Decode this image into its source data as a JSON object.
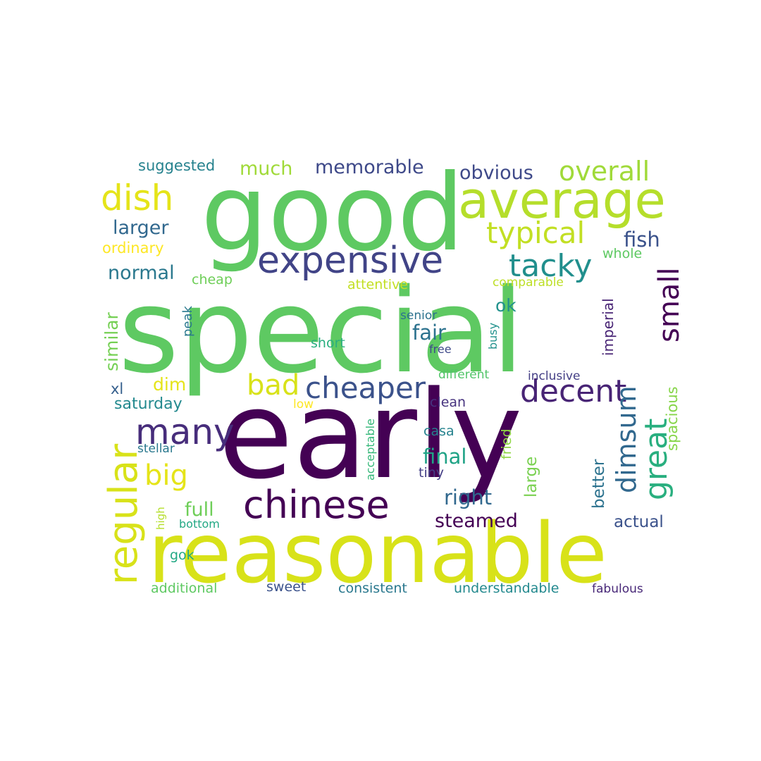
{
  "word_cloud": {
    "words": [
      {
        "text": "special",
        "color": "#5ec962"
      },
      {
        "text": "early",
        "color": "#440154"
      },
      {
        "text": "good",
        "color": "#5ec962"
      },
      {
        "text": "reasonable",
        "color": "#d8e219"
      },
      {
        "text": "average",
        "color": "#b5de2b"
      },
      {
        "text": "expensive",
        "color": "#414487"
      },
      {
        "text": "chinese",
        "color": "#440154"
      },
      {
        "text": "regular",
        "color": "#d8e219"
      },
      {
        "text": "many",
        "color": "#472d7b"
      },
      {
        "text": "cheaper",
        "color": "#3b528b"
      },
      {
        "text": "decent",
        "color": "#482475"
      },
      {
        "text": "typical",
        "color": "#c2df23"
      },
      {
        "text": "dish",
        "color": "#e5e419"
      },
      {
        "text": "tacky",
        "color": "#218f8d"
      },
      {
        "text": "overall",
        "color": "#a0da39"
      },
      {
        "text": "dimsum",
        "color": "#31688e"
      },
      {
        "text": "great",
        "color": "#29af7f"
      },
      {
        "text": "small",
        "color": "#440154"
      },
      {
        "text": "big",
        "color": "#e5e419"
      },
      {
        "text": "bad",
        "color": "#d8e219"
      },
      {
        "text": "memorable",
        "color": "#3e4989"
      },
      {
        "text": "obvious",
        "color": "#3e4989"
      },
      {
        "text": "larger",
        "color": "#31688e"
      },
      {
        "text": "normal",
        "color": "#2a788e"
      },
      {
        "text": "much",
        "color": "#a0da39"
      },
      {
        "text": "fish",
        "color": "#3b528b"
      },
      {
        "text": "fair",
        "color": "#2c728e"
      },
      {
        "text": "right",
        "color": "#31688e"
      },
      {
        "text": "final",
        "color": "#20a386"
      },
      {
        "text": "steamed",
        "color": "#440154"
      },
      {
        "text": "full",
        "color": "#6ece58"
      },
      {
        "text": "suggested",
        "color": "#26828e"
      },
      {
        "text": "ordinary",
        "color": "#fde725"
      },
      {
        "text": "similar",
        "color": "#75d054"
      },
      {
        "text": "ok",
        "color": "#21918c"
      },
      {
        "text": "saturday",
        "color": "#23898e"
      },
      {
        "text": "dim",
        "color": "#e5e419"
      },
      {
        "text": "actual",
        "color": "#3b528b"
      },
      {
        "text": "better",
        "color": "#2c728e"
      },
      {
        "text": "large",
        "color": "#7ad151"
      },
      {
        "text": "spacious",
        "color": "#86d549"
      },
      {
        "text": "imperial",
        "color": "#482475"
      },
      {
        "text": "whole",
        "color": "#5ec962"
      },
      {
        "text": "cheap",
        "color": "#6ece58"
      },
      {
        "text": "attentive",
        "color": "#c2df23"
      },
      {
        "text": "comparable",
        "color": "#bddf26"
      },
      {
        "text": "peak",
        "color": "#2a788e"
      },
      {
        "text": "xl",
        "color": "#355f8d"
      },
      {
        "text": "senior",
        "color": "#2c728e"
      },
      {
        "text": "short",
        "color": "#29af7f"
      },
      {
        "text": "free",
        "color": "#3e4989"
      },
      {
        "text": "busy",
        "color": "#21918c"
      },
      {
        "text": "different",
        "color": "#52c569"
      },
      {
        "text": "inclusive",
        "color": "#433e85"
      },
      {
        "text": "clean",
        "color": "#46327e"
      },
      {
        "text": "low",
        "color": "#fde725"
      },
      {
        "text": "casa",
        "color": "#26828e"
      },
      {
        "text": "stellar",
        "color": "#2a788e"
      },
      {
        "text": "acceptable",
        "color": "#35b779"
      },
      {
        "text": "fried",
        "color": "#8fd744"
      },
      {
        "text": "tiny",
        "color": "#433e85"
      },
      {
        "text": "high",
        "color": "#b5de2b"
      },
      {
        "text": "bottom",
        "color": "#22a884"
      },
      {
        "text": "gok",
        "color": "#22a884"
      },
      {
        "text": "additional",
        "color": "#5ec962"
      },
      {
        "text": "sweet",
        "color": "#3b528b"
      },
      {
        "text": "consistent",
        "color": "#2a788e"
      },
      {
        "text": "understandable",
        "color": "#23898e"
      },
      {
        "text": "fabulous",
        "color": "#482878"
      }
    ]
  }
}
